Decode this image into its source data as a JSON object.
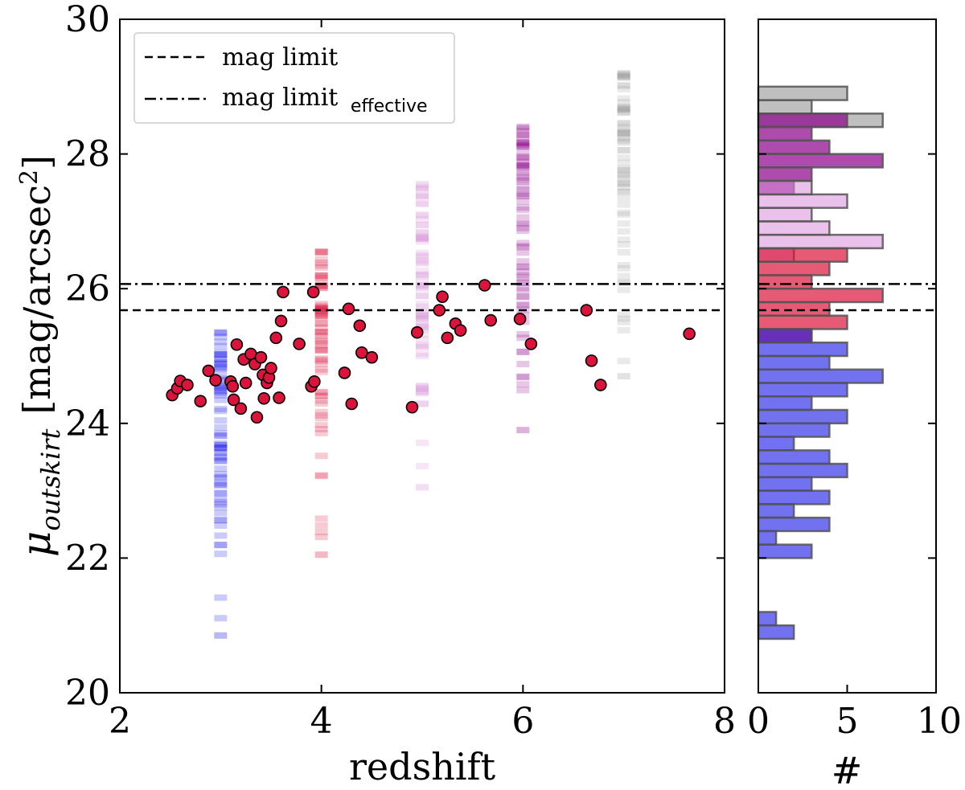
{
  "chart_data": [
    {
      "type": "scatter",
      "name": "main",
      "xlabel": "redshift",
      "ylabel_symbol": "μ",
      "ylabel_subscript": "outskirt",
      "ylabel_units": "[mag/arcsec",
      "ylabel_units_sup": "2",
      "ylabel_units_close": "]",
      "xlim": [
        2,
        8
      ],
      "ylim": [
        20,
        30
      ],
      "xticks": [
        2,
        4,
        6,
        8
      ],
      "yticks": [
        20,
        22,
        24,
        26,
        28,
        30
      ],
      "xtick_labels": [
        "2",
        "4",
        "6",
        "8"
      ],
      "ytick_labels": [
        "20",
        "22",
        "24",
        "26",
        "28",
        "30"
      ],
      "hlines": [
        {
          "name": "mag limit",
          "y": 25.68,
          "style": "dashed"
        },
        {
          "name": "mag limit effective",
          "y": 26.07,
          "style": "dashdot"
        }
      ],
      "legend": {
        "position": "top-left",
        "entries": [
          {
            "label": "mag limit",
            "sub": "",
            "style": "dashed"
          },
          {
            "label": "mag limit",
            "sub": "effective",
            "style": "dashdot"
          }
        ]
      },
      "observed_points": {
        "color": "#dc143c",
        "x": [
          2.52,
          2.57,
          2.6,
          2.67,
          2.8,
          2.88,
          2.95,
          3.1,
          3.12,
          3.13,
          3.16,
          3.2,
          3.23,
          3.25,
          3.3,
          3.34,
          3.36,
          3.4,
          3.42,
          3.43,
          3.46,
          3.48,
          3.5,
          3.55,
          3.58,
          3.6,
          3.62,
          3.78,
          3.9,
          3.92,
          3.93,
          4.23,
          4.27,
          4.3,
          4.38,
          4.4,
          4.5,
          4.9,
          4.95,
          5.17,
          5.2,
          5.25,
          5.33,
          5.38,
          5.62,
          5.68,
          5.97,
          6.08,
          6.63,
          6.68,
          6.77,
          7.65
        ],
        "y": [
          24.42,
          24.52,
          24.63,
          24.57,
          24.33,
          24.78,
          24.64,
          24.62,
          24.55,
          24.35,
          25.17,
          24.22,
          24.95,
          24.6,
          25.03,
          24.88,
          24.09,
          24.98,
          24.72,
          24.37,
          24.6,
          24.68,
          24.82,
          25.27,
          24.38,
          25.52,
          25.95,
          25.18,
          24.55,
          25.95,
          24.62,
          24.75,
          25.7,
          24.29,
          25.45,
          25.05,
          24.98,
          24.24,
          25.35,
          25.68,
          25.88,
          25.27,
          25.48,
          25.38,
          26.05,
          25.53,
          25.55,
          25.18,
          25.68,
          24.93,
          24.57,
          25.33
        ]
      },
      "simulated_columns": [
        {
          "z": 3,
          "color": "#1414e6",
          "ymin": 20.85,
          "ymax": 25.35
        },
        {
          "z": 4,
          "color": "#dc143c",
          "ymin": 22.05,
          "ymax": 26.55
        },
        {
          "z": 5,
          "color": "#d88ed8",
          "ymin": 23.05,
          "ymax": 27.55
        },
        {
          "z": 6,
          "color": "#8b008b",
          "ymin": 23.9,
          "ymax": 28.4
        },
        {
          "z": 7,
          "color": "#a0a0a0",
          "ymin": 24.7,
          "ymax": 29.2
        }
      ]
    },
    {
      "type": "histogram",
      "name": "side",
      "orientation": "horizontal",
      "xlabel": "#",
      "xlim": [
        0,
        10
      ],
      "xticks": [
        0,
        5,
        10
      ],
      "xtick_labels": [
        "0",
        "5",
        "10"
      ],
      "ylim": [
        20,
        30
      ],
      "bin_width": 0.2,
      "series": [
        {
          "name": "z=7",
          "color": "#b4b4b4",
          "opacity": 0.85,
          "bins": [
            [
              28.4,
              7
            ],
            [
              28.6,
              3
            ],
            [
              28.8,
              5
            ]
          ]
        },
        {
          "name": "z=6",
          "color": "#8b008b",
          "opacity": 0.7,
          "bins": [
            [
              27.4,
              2
            ],
            [
              27.6,
              3
            ],
            [
              27.8,
              7
            ],
            [
              28.0,
              4
            ],
            [
              28.2,
              3
            ],
            [
              28.4,
              5
            ]
          ]
        },
        {
          "name": "z=5",
          "color": "#d88ed8",
          "opacity": 0.55,
          "bins": [
            [
              26.4,
              2
            ],
            [
              26.6,
              7
            ],
            [
              26.8,
              4
            ],
            [
              27.0,
              3
            ],
            [
              27.2,
              5
            ],
            [
              27.4,
              3
            ]
          ]
        },
        {
          "name": "z=4",
          "color": "#dc143c",
          "opacity": 0.7,
          "bins": [
            [
              25.2,
              3
            ],
            [
              25.4,
              5
            ],
            [
              25.6,
              4
            ],
            [
              25.8,
              7
            ],
            [
              26.0,
              3
            ],
            [
              26.2,
              4
            ],
            [
              26.4,
              5
            ]
          ]
        },
        {
          "name": "z=3",
          "color": "#1414e6",
          "opacity": 0.6,
          "bins": [
            [
              20.8,
              2
            ],
            [
              21.0,
              1
            ],
            [
              22.0,
              3
            ],
            [
              22.2,
              1
            ],
            [
              22.4,
              4
            ],
            [
              22.6,
              2
            ],
            [
              22.8,
              4
            ],
            [
              23.0,
              3
            ],
            [
              23.2,
              5
            ],
            [
              23.4,
              4
            ],
            [
              23.6,
              2
            ],
            [
              23.8,
              4
            ],
            [
              24.0,
              5
            ],
            [
              24.2,
              3
            ],
            [
              24.4,
              5
            ],
            [
              24.6,
              7
            ],
            [
              24.8,
              4
            ],
            [
              25.0,
              5
            ],
            [
              25.2,
              3
            ]
          ]
        }
      ]
    }
  ]
}
